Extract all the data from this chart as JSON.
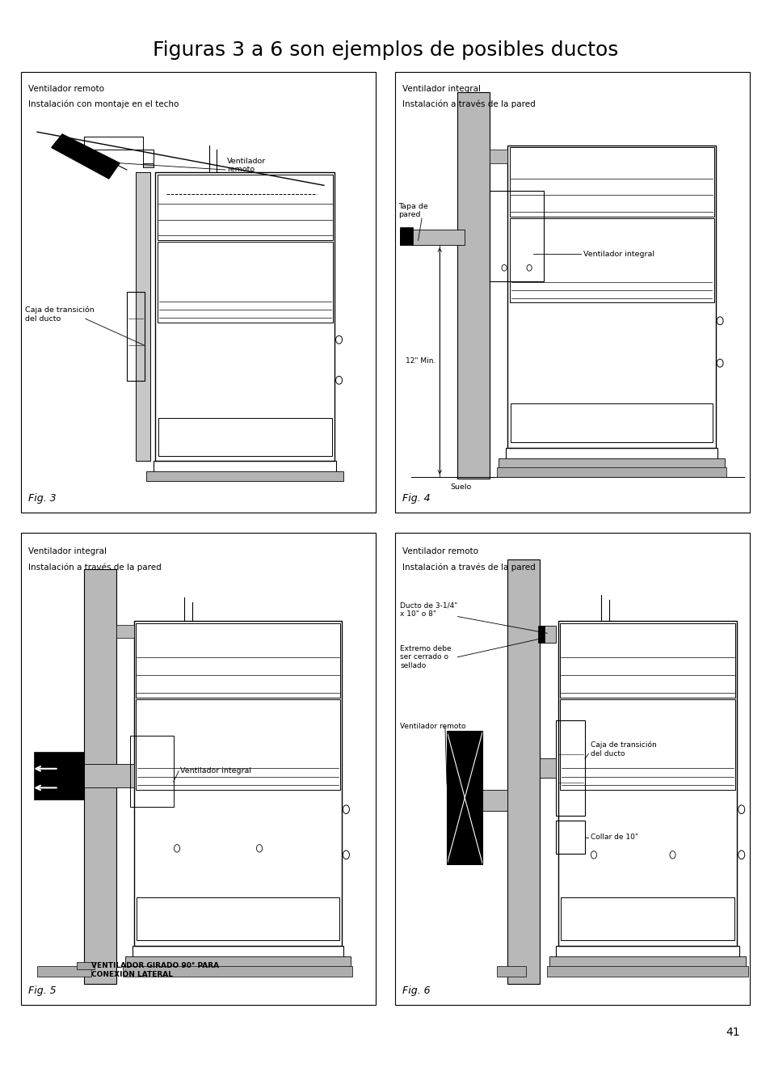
{
  "title": "Figuras 3 a 6 son ejemplos de posibles ductos",
  "title_fontsize": 18,
  "background_color": "#ffffff",
  "page_number": "41",
  "panel_border_lw": 0.8,
  "fig3": {
    "label": "Fig. 3",
    "title_line1": "Ventilador remoto",
    "title_line2": "Instalación con montaje en el techo"
  },
  "fig4": {
    "label": "Fig. 4",
    "title_line1": "Ventilador integral",
    "title_line2": "Instalación a través de la pared"
  },
  "fig5": {
    "label": "Fig. 5",
    "title_line1": "Ventilador integral",
    "title_line2": "Instalación a través de la pared"
  },
  "fig6": {
    "label": "Fig. 6",
    "title_line1": "Ventilador remoto",
    "title_line2": "Instalación a través de la pared"
  }
}
